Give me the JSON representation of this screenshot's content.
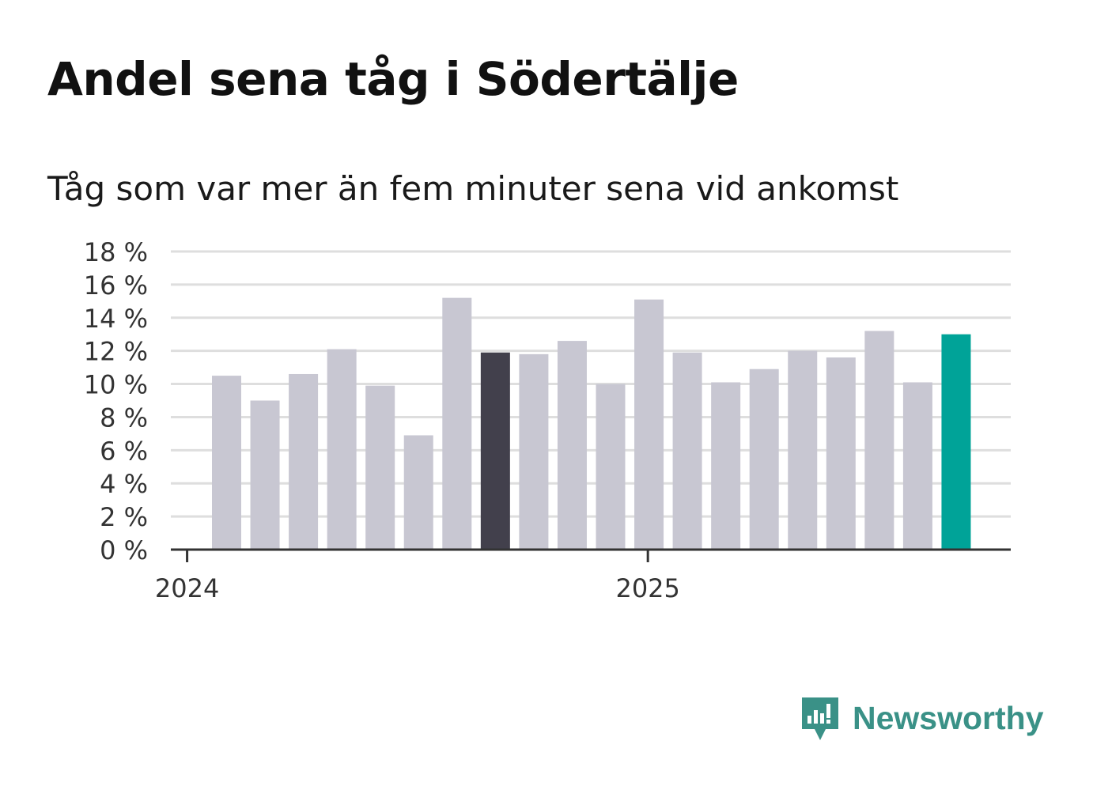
{
  "title": "Andel sena tåg i Södertälje",
  "subtitle": "Tåg som var mer än fem minuter sena vid ankomst",
  "brand": {
    "name": "Newsworthy",
    "icon": "newsworthy-logo-icon"
  },
  "colors": {
    "default_bar": "#c8c7d2",
    "highlight_prev": "#42404c",
    "highlight_current": "#00a398",
    "grid": "#dedede",
    "axis": "#333333"
  },
  "chart_data": {
    "type": "bar",
    "title": "Andel sena tåg i Södertälje",
    "subtitle": "Tåg som var mer än fem minuter sena vid ankomst",
    "ylabel": "",
    "xlabel": "",
    "ylim": [
      0,
      18
    ],
    "yticks": [
      0,
      2,
      4,
      6,
      8,
      10,
      12,
      14,
      16,
      18
    ],
    "ytick_labels": [
      "0 %",
      "2 %",
      "4 %",
      "6 %",
      "8 %",
      "10 %",
      "12 %",
      "14 %",
      "16 %",
      "18 %"
    ],
    "xtick_labels": [
      "2024",
      "2025"
    ],
    "xtick_index": [
      -0.4,
      11.6
    ],
    "grid": true,
    "categories": [
      "2024-02",
      "2024-03",
      "2024-04",
      "2024-05",
      "2024-06",
      "2024-07",
      "2024-08",
      "2024-09",
      "2024-10",
      "2024-11",
      "2024-12",
      "2025-01",
      "2025-02",
      "2025-03",
      "2025-04",
      "2025-05",
      "2025-06",
      "2025-07",
      "2025-08",
      "2025-09"
    ],
    "values": [
      10.5,
      9.0,
      10.6,
      12.1,
      9.9,
      6.9,
      15.2,
      11.9,
      11.8,
      12.6,
      10.0,
      15.1,
      11.9,
      10.1,
      10.9,
      12.0,
      11.6,
      13.2,
      10.1,
      13.0
    ],
    "highlight": {
      "7": "highlight_prev",
      "19": "highlight_current"
    }
  }
}
